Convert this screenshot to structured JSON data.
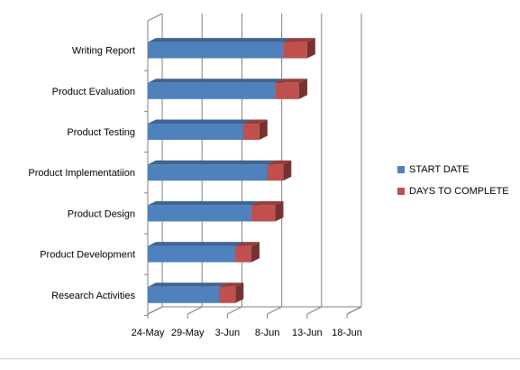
{
  "chart_data": {
    "type": "bar",
    "orientation": "horizontal",
    "stacked": true,
    "style": "3d",
    "categories": [
      "Writing Report",
      "Product Evaluation",
      "Product Testing",
      "Product Implementatiion",
      "Product Design",
      "Product Development",
      "Research Activities"
    ],
    "series": [
      {
        "name": "START DATE",
        "color": "#4f81bd",
        "values": [
          "2012-06-10",
          "2012-06-09",
          "2012-06-05",
          "2012-06-08",
          "2012-06-06",
          "2012-06-04",
          "2012-06-02"
        ]
      },
      {
        "name": "DAYS TO COMPLETE",
        "color": "#c0504d",
        "values": [
          3,
          3,
          2,
          2,
          3,
          2,
          2
        ]
      }
    ],
    "x_axis": {
      "ticks": [
        "2012-05-24",
        "2012-05-29",
        "2012-06-03",
        "2012-06-08",
        "2012-06-13",
        "2012-06-18"
      ],
      "tick_labels": [
        "24-May",
        "29-May",
        "3-Jun",
        "8-Jun",
        "13-Jun",
        "18-Jun"
      ],
      "range": [
        "2012-05-24",
        "2012-06-18"
      ]
    },
    "grid": true,
    "legend_position": "right",
    "title": "",
    "xlabel": "",
    "ylabel": ""
  }
}
